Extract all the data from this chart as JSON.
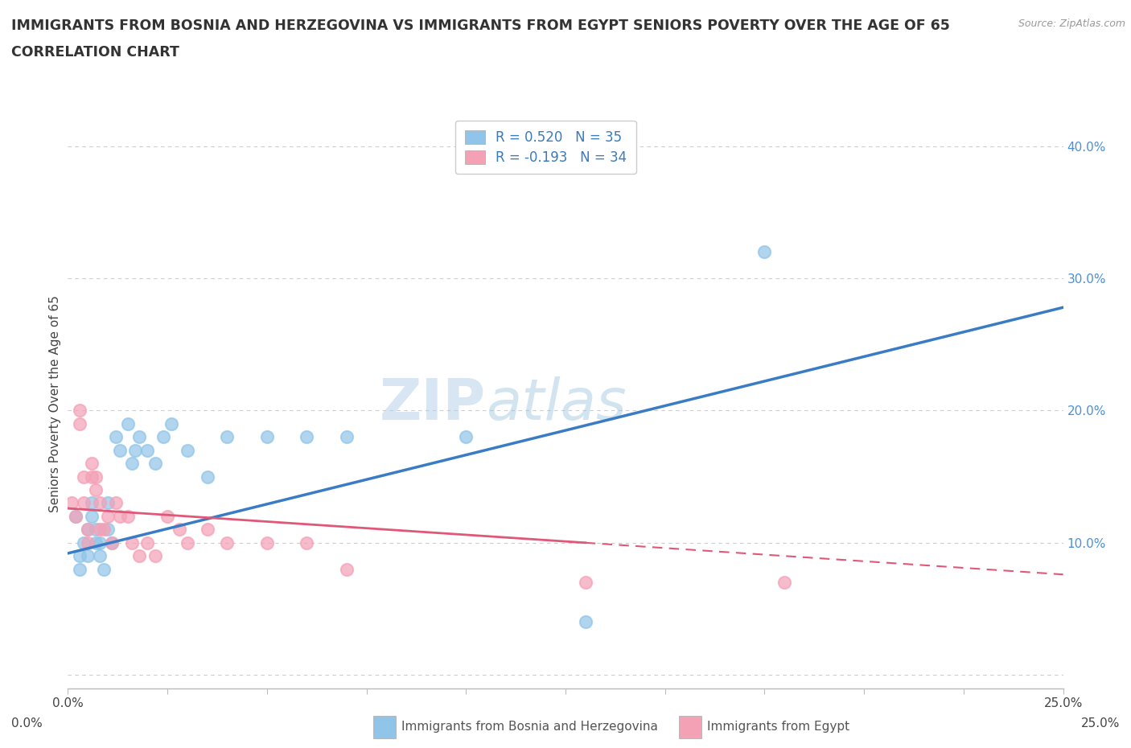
{
  "title_line1": "IMMIGRANTS FROM BOSNIA AND HERZEGOVINA VS IMMIGRANTS FROM EGYPT SENIORS POVERTY OVER THE AGE OF 65",
  "title_line2": "CORRELATION CHART",
  "source": "Source: ZipAtlas.com",
  "xlabel_bosnia": "Immigrants from Bosnia and Herzegovina",
  "xlabel_egypt": "Immigrants from Egypt",
  "ylabel": "Seniors Poverty Over the Age of 65",
  "xlim": [
    0.0,
    0.25
  ],
  "ylim": [
    -0.01,
    0.42
  ],
  "yticks": [
    0.0,
    0.1,
    0.2,
    0.3,
    0.4
  ],
  "ytick_labels": [
    "",
    "10.0%",
    "20.0%",
    "30.0%",
    "40.0%"
  ],
  "xticks": [
    0.0,
    0.025,
    0.05,
    0.075,
    0.1,
    0.125,
    0.15,
    0.175,
    0.2,
    0.225,
    0.25
  ],
  "R_bosnia": 0.52,
  "N_bosnia": 35,
  "R_egypt": -0.193,
  "N_egypt": 34,
  "color_bosnia": "#90C4E8",
  "color_egypt": "#F4A0B5",
  "line_color_bosnia": "#3A7CC4",
  "line_color_egypt": "#E05878",
  "watermark_zip": "ZIP",
  "watermark_atlas": "atlas",
  "bosnia_x": [
    0.002,
    0.003,
    0.003,
    0.004,
    0.005,
    0.005,
    0.006,
    0.006,
    0.007,
    0.007,
    0.008,
    0.008,
    0.009,
    0.01,
    0.01,
    0.011,
    0.012,
    0.013,
    0.015,
    0.016,
    0.017,
    0.018,
    0.02,
    0.022,
    0.024,
    0.026,
    0.03,
    0.035,
    0.04,
    0.05,
    0.06,
    0.07,
    0.1,
    0.175,
    0.13
  ],
  "bosnia_y": [
    0.12,
    0.09,
    0.08,
    0.1,
    0.11,
    0.09,
    0.13,
    0.12,
    0.1,
    0.11,
    0.09,
    0.1,
    0.08,
    0.13,
    0.11,
    0.1,
    0.18,
    0.17,
    0.19,
    0.16,
    0.17,
    0.18,
    0.17,
    0.16,
    0.18,
    0.19,
    0.17,
    0.15,
    0.18,
    0.18,
    0.18,
    0.18,
    0.18,
    0.32,
    0.04
  ],
  "egypt_x": [
    0.001,
    0.002,
    0.003,
    0.003,
    0.004,
    0.004,
    0.005,
    0.005,
    0.006,
    0.006,
    0.007,
    0.007,
    0.008,
    0.008,
    0.009,
    0.01,
    0.011,
    0.012,
    0.013,
    0.015,
    0.016,
    0.018,
    0.02,
    0.022,
    0.025,
    0.028,
    0.03,
    0.035,
    0.04,
    0.05,
    0.06,
    0.07,
    0.13,
    0.18
  ],
  "egypt_y": [
    0.13,
    0.12,
    0.19,
    0.2,
    0.13,
    0.15,
    0.11,
    0.1,
    0.16,
    0.15,
    0.14,
    0.15,
    0.13,
    0.11,
    0.11,
    0.12,
    0.1,
    0.13,
    0.12,
    0.12,
    0.1,
    0.09,
    0.1,
    0.09,
    0.12,
    0.11,
    0.1,
    0.11,
    0.1,
    0.1,
    0.1,
    0.08,
    0.07,
    0.07
  ],
  "line_bosnia_x0": 0.0,
  "line_bosnia_y0": 0.092,
  "line_bosnia_x1": 0.25,
  "line_bosnia_y1": 0.278,
  "line_egypt_x0": 0.0,
  "line_egypt_y0": 0.126,
  "line_egypt_x1": 0.25,
  "line_egypt_y1": 0.076,
  "line_egypt_dash_x0": 0.13,
  "line_egypt_dash_x1": 0.25
}
